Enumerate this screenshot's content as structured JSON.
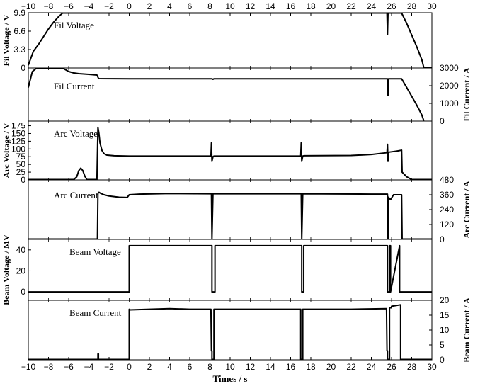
{
  "chart_data": {
    "type": "line",
    "xlabel": "Times / s",
    "xlim": [
      -10,
      30
    ],
    "xticks": [
      -10,
      -8,
      -6,
      -4,
      -2,
      0,
      2,
      4,
      6,
      8,
      10,
      12,
      14,
      16,
      18,
      20,
      22,
      24,
      26,
      28,
      30
    ],
    "xtick_labels": [
      "−10",
      "−8",
      "−6",
      "−4",
      "−2",
      "0",
      "2",
      "4",
      "6",
      "8",
      "10",
      "12",
      "14",
      "16",
      "18",
      "20",
      "22",
      "24",
      "26",
      "28",
      "30"
    ],
    "panels": [
      {
        "name": "Fil Voltage",
        "title": "Fil Voltage",
        "axis_side": "left",
        "ylabel": "Fil Voltage / V",
        "ylim": [
          0,
          9.9
        ],
        "yticks": [
          0,
          3.3,
          6.6,
          9.9
        ],
        "ytick_labels": [
          "0",
          "3.3",
          "6.6",
          "9.9"
        ],
        "x": [
          -10,
          -9.5,
          -9,
          -8.5,
          -8,
          -7.5,
          -7,
          -6.6,
          -6,
          0,
          8,
          17,
          25,
          25.55,
          25.6,
          25.65,
          25.7,
          26,
          27,
          27.5,
          28,
          28.5,
          29,
          29.2,
          30
        ],
        "y": [
          0.5,
          3.0,
          4.2,
          5.6,
          7.0,
          8.2,
          9.2,
          9.9,
          9.9,
          9.9,
          9.9,
          9.9,
          9.9,
          9.9,
          6.0,
          9.9,
          9.9,
          9.9,
          9.9,
          8.0,
          5.9,
          3.8,
          1.5,
          0,
          0
        ]
      },
      {
        "name": "Fil Current",
        "title": "Fil Current",
        "axis_side": "right",
        "ylabel": "Fil Current / A",
        "ylim": [
          0,
          3000
        ],
        "yticks": [
          0,
          1000,
          2000,
          3000
        ],
        "ytick_labels": [
          "0",
          "1000",
          "2000",
          "3000"
        ],
        "x": [
          -10,
          -9.6,
          -9.2,
          -7,
          -6.5,
          -6,
          -5.5,
          -5,
          -4,
          -3.2,
          -3.05,
          -3,
          0,
          8.2,
          8.3,
          8.4,
          17.2,
          17.3,
          25.6,
          25.65,
          25.7,
          26,
          27,
          27.5,
          28,
          28.5,
          29,
          29.2
        ],
        "y": [
          1900,
          2800,
          3000,
          3000,
          2960,
          2800,
          2720,
          2680,
          2640,
          2600,
          2420,
          2400,
          2390,
          2390,
          2360,
          2390,
          2390,
          2390,
          2390,
          1450,
          2390,
          2390,
          2390,
          1900,
          1400,
          900,
          350,
          0
        ]
      },
      {
        "name": "Arc Voltage",
        "title": "Arc Voltage",
        "axis_side": "left",
        "ylabel": "Arc Voltage / V",
        "ylim": [
          0,
          190
        ],
        "yticks": [
          0,
          25,
          50,
          75,
          100,
          125,
          150,
          175
        ],
        "ytick_labels": [
          "0",
          "25",
          "50",
          "75",
          "100",
          "125",
          "150",
          "175"
        ],
        "x": [
          -10,
          -5.5,
          -5.2,
          -5.0,
          -4.8,
          -4.6,
          -4.4,
          -4.2,
          -3.5,
          -3.2,
          -3.1,
          -3.0,
          -2.9,
          -2.7,
          -2.5,
          -2.2,
          -1.5,
          0,
          4,
          8.1,
          8.15,
          8.2,
          8.3,
          8.4,
          12,
          17,
          17.05,
          17.1,
          17.2,
          17.3,
          22,
          24,
          25.55,
          25.6,
          25.65,
          25.7,
          25.8,
          26.5,
          27,
          27.05,
          27.5,
          28,
          30
        ],
        "y": [
          0,
          0,
          10,
          30,
          38,
          30,
          12,
          0,
          0,
          0,
          170,
          150,
          120,
          95,
          85,
          80,
          78,
          77,
          77,
          77,
          120,
          60,
          75,
          77,
          77,
          77,
          120,
          60,
          77,
          78,
          79,
          82,
          88,
          115,
          60,
          88,
          90,
          93,
          96,
          25,
          10,
          0,
          0
        ]
      },
      {
        "name": "Arc Current",
        "title": "Arc Current",
        "axis_side": "right",
        "ylabel": "Arc Current / A",
        "ylim": [
          0,
          480
        ],
        "yticks": [
          0,
          120,
          240,
          360,
          480
        ],
        "ytick_labels": [
          "0",
          "120",
          "240",
          "360",
          "480"
        ],
        "x": [
          -10,
          -3.15,
          -3.1,
          -3.0,
          -2.8,
          -2.5,
          -2,
          -1.5,
          -1,
          -0.2,
          0,
          1,
          4,
          8.15,
          8.2,
          8.3,
          17.05,
          17.1,
          17.2,
          24,
          25.6,
          25.65,
          25.7,
          25.9,
          26.2,
          27,
          27.05,
          30
        ],
        "y": [
          0,
          0,
          370,
          380,
          370,
          360,
          350,
          345,
          340,
          338,
          360,
          365,
          370,
          368,
          0,
          368,
          368,
          0,
          368,
          365,
          365,
          0,
          340,
          320,
          360,
          360,
          0,
          0
        ]
      },
      {
        "name": "Beam Voltage",
        "title": "Beam Voltage",
        "axis_side": "left",
        "ylabel": "Beam Voltage / MV",
        "ylim": [
          -8,
          50
        ],
        "yticks": [
          0,
          20,
          40
        ],
        "ytick_labels": [
          "0",
          "20",
          "40"
        ],
        "x": [
          -10,
          0,
          0,
          8.2,
          8.2,
          8.5,
          8.5,
          17.1,
          17.1,
          17.3,
          17.3,
          25.6,
          25.6,
          25.8,
          25.8,
          25.9,
          25.9,
          26.8,
          26.8,
          30
        ],
        "y": [
          0,
          0,
          44,
          44,
          0,
          0,
          44,
          44,
          0,
          0,
          44,
          44,
          0,
          0,
          44,
          44,
          0,
          44,
          0,
          0
        ]
      },
      {
        "name": "Beam Current",
        "title": "Beam Current",
        "axis_side": "right",
        "ylabel": "Beam Current / A",
        "ylim": [
          0,
          20
        ],
        "yticks": [
          0,
          5,
          10,
          15,
          20
        ],
        "ytick_labels": [
          "0",
          "5",
          "10",
          "15",
          "20"
        ],
        "x": [
          -10,
          -3.1,
          -3.1,
          -3.05,
          -3.05,
          0,
          0,
          0.1,
          2,
          4,
          6,
          8.1,
          8.15,
          8.2,
          8.2,
          8.4,
          8.4,
          12,
          17.0,
          17.0,
          17.2,
          17.2,
          22,
          25.5,
          25.55,
          25.6,
          25.6,
          25.8,
          25.8,
          26.0,
          26.0,
          26.9,
          26.9,
          30
        ],
        "y": [
          0,
          0,
          2,
          2,
          0,
          0,
          17,
          16.8,
          17,
          17.2,
          17,
          17,
          3,
          3,
          0,
          0,
          17,
          17,
          17,
          0,
          0,
          17,
          17,
          17.2,
          3,
          3,
          0,
          0,
          17.5,
          17.5,
          18,
          18.5,
          0,
          0
        ]
      }
    ]
  }
}
